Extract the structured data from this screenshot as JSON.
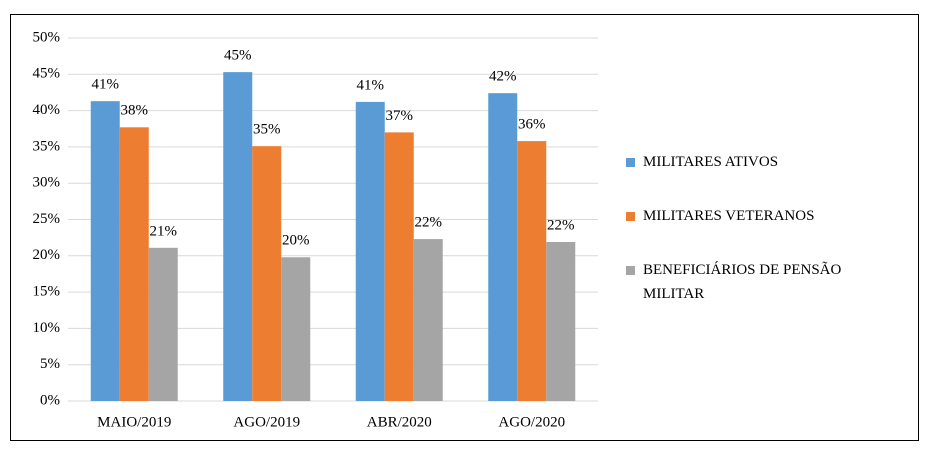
{
  "chart_data": {
    "type": "bar",
    "categories": [
      "MAIO/2019",
      "AGO/2019",
      "ABR/2020",
      "AGO/2020"
    ],
    "series": [
      {
        "name": "MILITARES ATIVOS",
        "color": "#5b9bd5",
        "values": [
          41.3,
          45.3,
          41.2,
          42.4
        ],
        "value_labels": [
          "41%",
          "45%",
          "41%",
          "42%"
        ]
      },
      {
        "name": "MILITARES VETERANOS",
        "color": "#ed7d31",
        "values": [
          37.7,
          35.1,
          37.0,
          35.8
        ],
        "value_labels": [
          "38%",
          "35%",
          "37%",
          "36%"
        ]
      },
      {
        "name": "BENEFICIÁRIOS DE PENSÃO MILITAR",
        "color": "#a5a5a5",
        "values": [
          21.1,
          19.8,
          22.3,
          21.9
        ],
        "value_labels": [
          "21%",
          "20%",
          "22%",
          "22%"
        ]
      }
    ],
    "ylim": [
      0,
      50
    ],
    "yticks": [
      {
        "value": 0,
        "label": "0%"
      },
      {
        "value": 5,
        "label": "5%"
      },
      {
        "value": 10,
        "label": "10%"
      },
      {
        "value": 15,
        "label": "15%"
      },
      {
        "value": 20,
        "label": "20%"
      },
      {
        "value": 25,
        "label": "25%"
      },
      {
        "value": 30,
        "label": "30%"
      },
      {
        "value": 35,
        "label": "35%"
      },
      {
        "value": 40,
        "label": "40%"
      },
      {
        "value": 45,
        "label": "45%"
      },
      {
        "value": 50,
        "label": "50%"
      }
    ],
    "grid": true,
    "legend": "right"
  }
}
